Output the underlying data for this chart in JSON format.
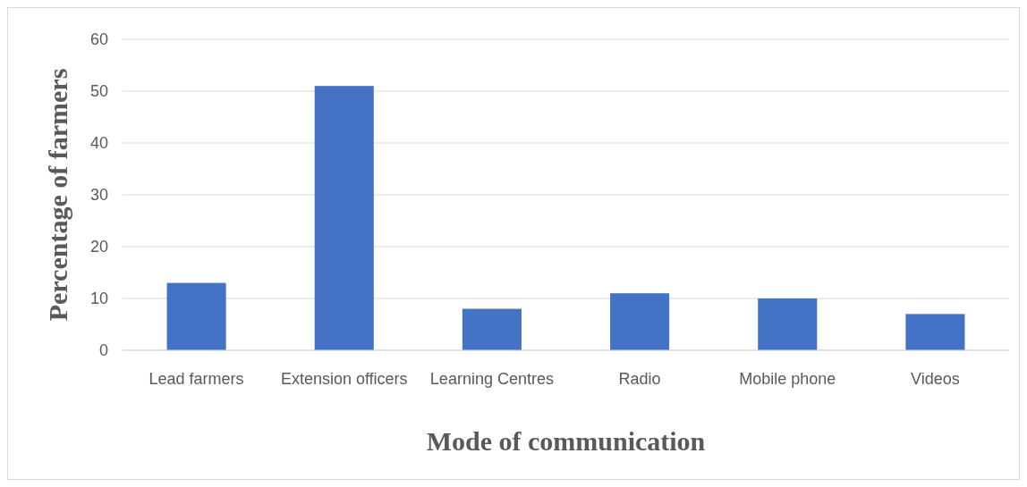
{
  "chart_data": {
    "type": "bar",
    "xlabel": "Mode of communication",
    "ylabel": "Percentage of farmers",
    "categories": [
      "Lead farmers",
      "Extension officers",
      "Learning Centres",
      "Radio",
      "Mobile phone",
      "Videos"
    ],
    "values": [
      13,
      51,
      8,
      11,
      10,
      7
    ],
    "color": "#4472c4",
    "ylim": [
      0,
      60
    ],
    "yticks": [
      0,
      10,
      20,
      30,
      40,
      50,
      60
    ],
    "grid": "y"
  }
}
